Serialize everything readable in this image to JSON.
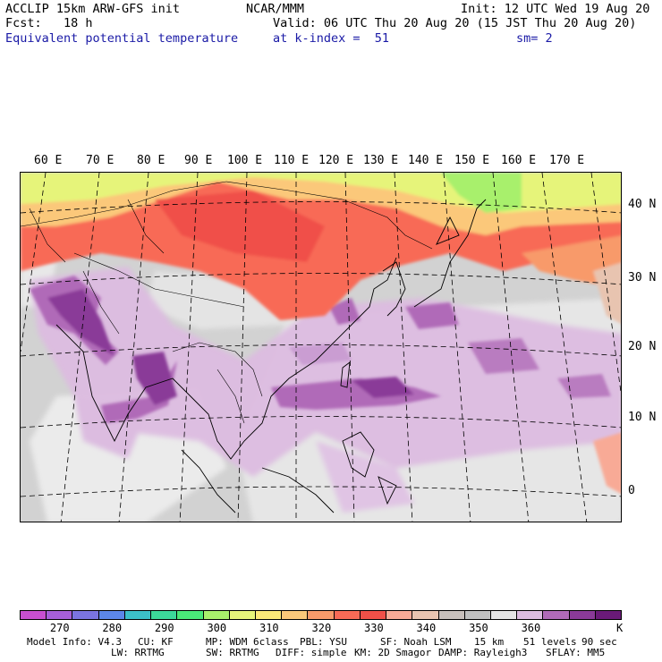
{
  "header": {
    "line1_left": "ACCLIP 15km ARW-GFS init",
    "line1_mid": "NCAR/MMM",
    "line1_right": "Init: 12 UTC Wed 19 Aug 20",
    "line2_left": "Fcst:   18 h",
    "line2_right": "Valid: 06 UTC Thu 20 Aug 20 (15 JST Thu 20 Aug 20)",
    "line3_left": "Equivalent potential temperature",
    "line3_mid": "at k-index =  51",
    "line3_right": "sm= 2"
  },
  "map": {
    "lon_labels": [
      "60 E",
      "70 E",
      "80 E",
      "90 E",
      "100 E",
      "110 E",
      "120 E",
      "130 E",
      "140 E",
      "150 E",
      "160 E",
      "170 E"
    ],
    "lat_labels": [
      "40 N",
      "30 N",
      "20 N",
      "10 N",
      "0"
    ]
  },
  "colorbar": {
    "colors": [
      "#c84fd0",
      "#a65fd8",
      "#7a74e0",
      "#5c86e8",
      "#3cc0c8",
      "#3cd89a",
      "#4ae878",
      "#a8f06c",
      "#e6f47a",
      "#fbe878",
      "#fbc87a",
      "#f89a6a",
      "#f86a56",
      "#f05048",
      "#f8aa96",
      "#e8c4b0",
      "#c8c0bc",
      "#c0c0c0",
      "#e4e4e4",
      "#dcbce0",
      "#b06ab8",
      "#8a3a98",
      "#6a1a78"
    ],
    "labels": [
      "270",
      "280",
      "290",
      "300",
      "310",
      "320",
      "330",
      "340",
      "350",
      "360"
    ],
    "unit": "K"
  },
  "model_info": {
    "line1": [
      "Model Info: V4.3",
      "CU: KF",
      "MP: WDM 6class",
      "PBL: YSU",
      "SF: Noah LSM",
      "15 km",
      "51 levels",
      "90 sec"
    ],
    "line2": [
      "LW: RRTMG",
      "SW: RRTMG",
      "DIFF: simple",
      "KM: 2D Smagor",
      "DAMP: Rayleigh3",
      "SFLAY: MM5"
    ]
  }
}
